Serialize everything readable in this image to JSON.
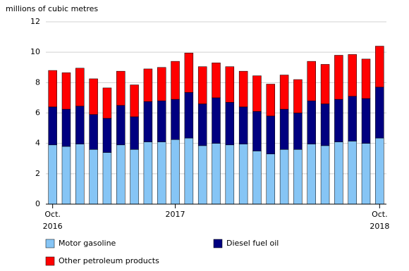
{
  "chart_data": {
    "type": "stacked-bar",
    "y_axis_label": "millions of cubic metres",
    "categories": [
      "Oct.\n2016",
      null,
      null,
      null,
      null,
      null,
      null,
      null,
      null,
      "2017",
      null,
      null,
      null,
      null,
      null,
      null,
      null,
      null,
      null,
      null,
      null,
      null,
      null,
      null,
      "Oct.\n2018"
    ],
    "series": [
      {
        "name": "Motor gasoline",
        "color": "#86c5f5",
        "values": [
          3.9,
          3.8,
          3.95,
          3.6,
          3.4,
          3.9,
          3.6,
          4.1,
          4.1,
          4.25,
          4.35,
          3.85,
          4.0,
          3.9,
          3.95,
          3.5,
          3.3,
          3.6,
          3.6,
          3.95,
          3.85,
          4.1,
          4.15,
          4.0,
          4.35
        ]
      },
      {
        "name": "Diesel fuel oil",
        "color": "#000080",
        "values": [
          2.5,
          2.45,
          2.5,
          2.3,
          2.25,
          2.6,
          2.15,
          2.65,
          2.7,
          2.65,
          3.0,
          2.75,
          3.0,
          2.8,
          2.45,
          2.6,
          2.5,
          2.65,
          2.4,
          2.85,
          2.75,
          2.8,
          2.95,
          2.95,
          3.35
        ]
      },
      {
        "name": "Other petroleum products",
        "color": "#ff0000",
        "values": [
          2.4,
          2.4,
          2.5,
          2.35,
          2.0,
          2.25,
          2.1,
          2.15,
          2.2,
          2.5,
          2.6,
          2.45,
          2.3,
          2.35,
          2.35,
          2.35,
          2.1,
          2.25,
          2.2,
          2.6,
          2.6,
          2.9,
          2.75,
          2.6,
          2.7
        ]
      }
    ],
    "ylim": [
      0,
      12
    ],
    "yticks": [
      0,
      2,
      4,
      6,
      8,
      10,
      12
    ],
    "grid": true
  }
}
